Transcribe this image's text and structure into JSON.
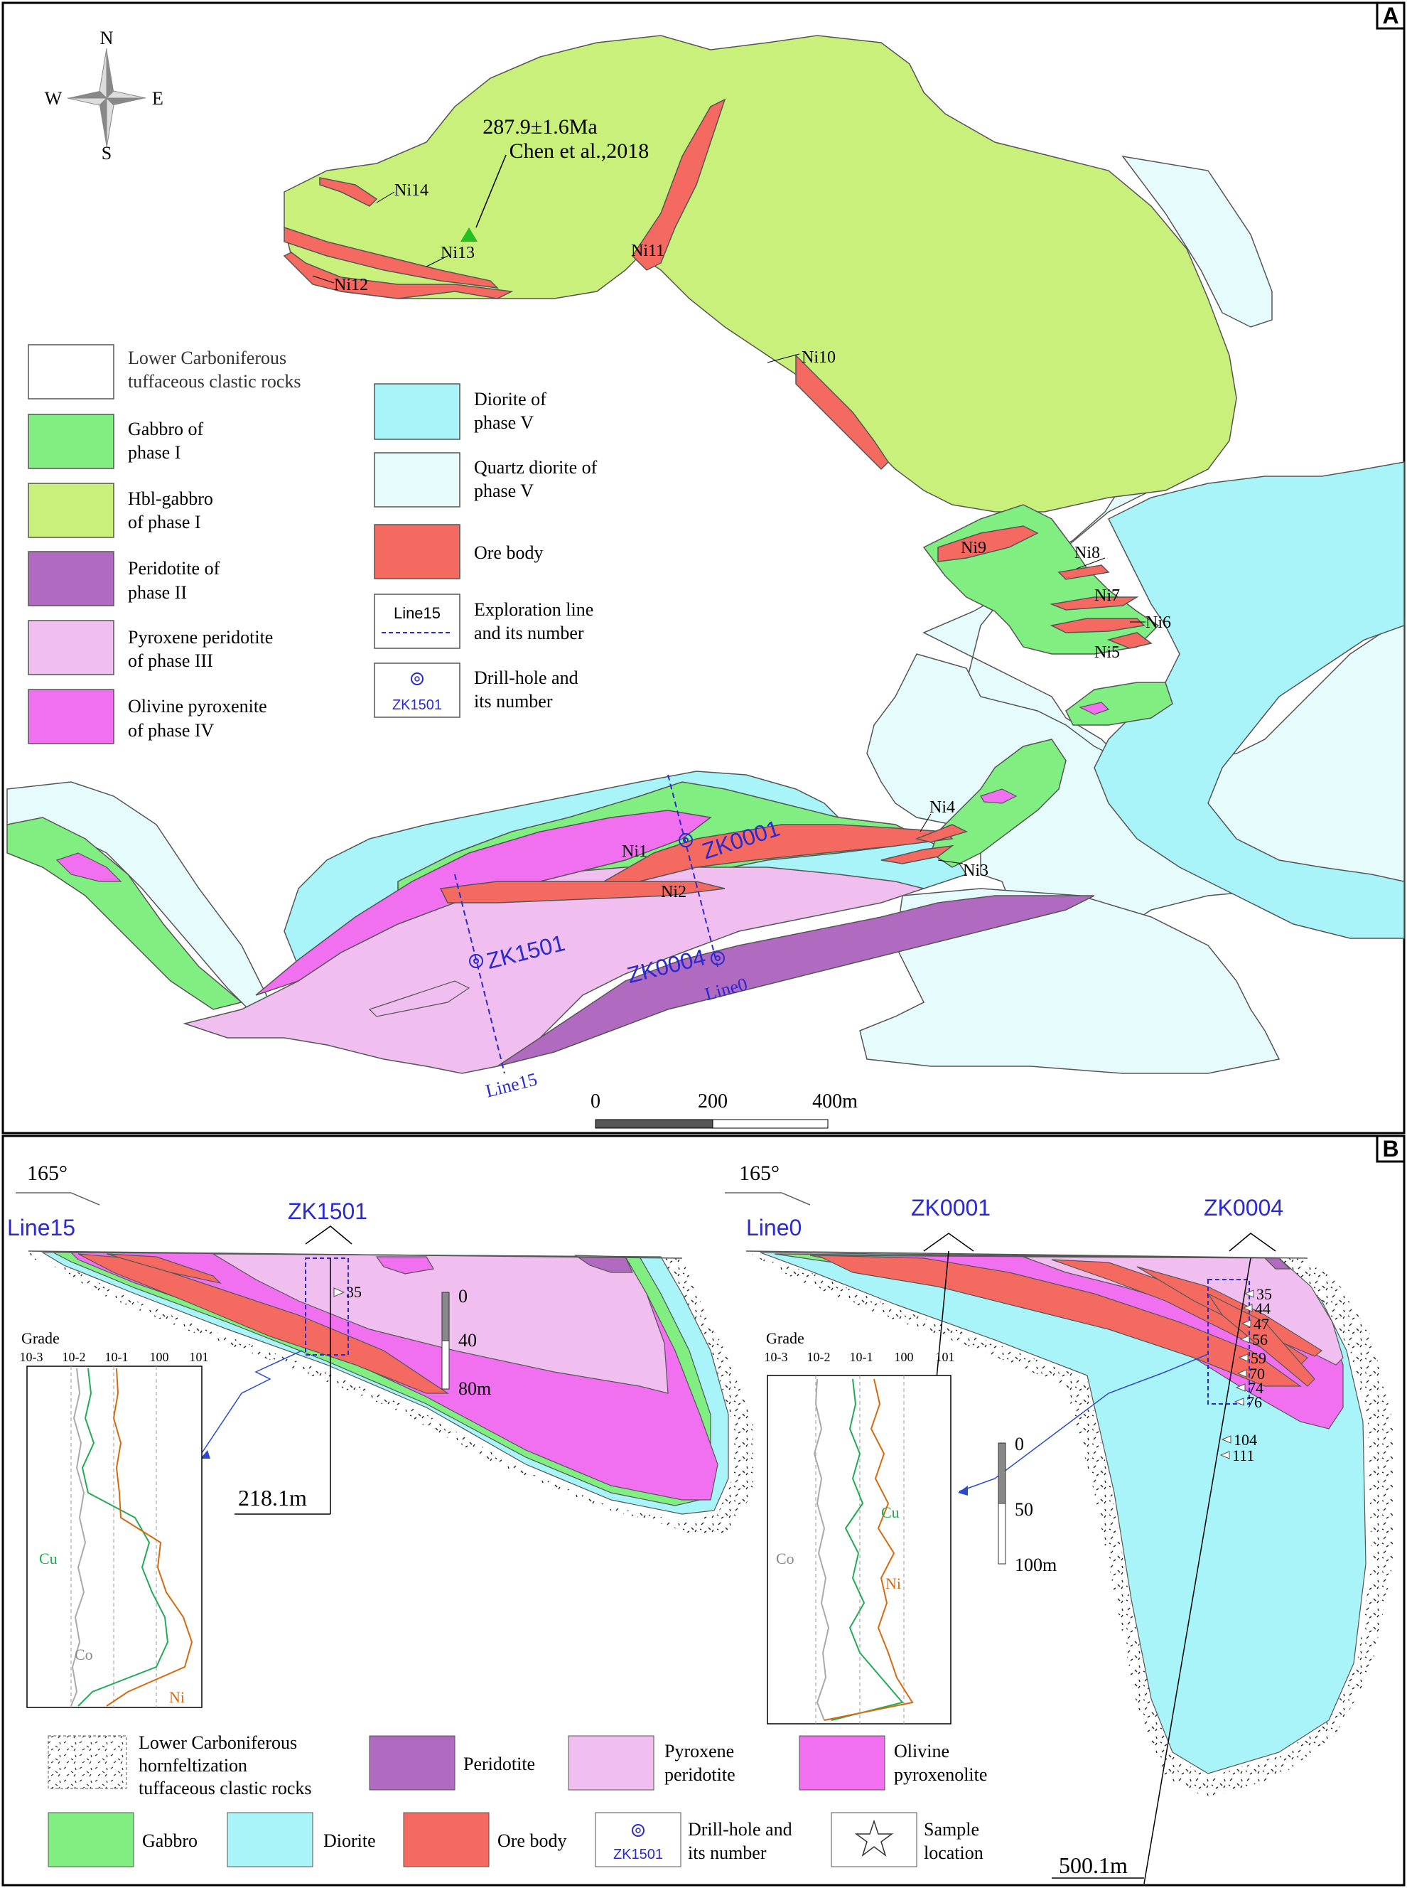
{
  "panel_a": {
    "label": "A",
    "compass": {
      "n": "N",
      "s": "S",
      "e": "E",
      "w": "W"
    },
    "date": {
      "age": "287.9±1.6Ma",
      "ref": "Chen  et al.,2018"
    },
    "ore_labels": [
      "Ni1",
      "Ni2",
      "Ni3",
      "Ni4",
      "Ni5",
      "Ni6",
      "Ni7",
      "Ni8",
      "Ni9",
      "Ni10",
      "Ni11",
      "Ni12",
      "Ni13",
      "Ni14"
    ],
    "drill_holes": [
      "ZK0001",
      "ZK1501",
      "ZK0004"
    ],
    "lines": [
      "Line0",
      "Line15"
    ],
    "scale": {
      "t0": "0",
      "t1": "200",
      "t2": "400m"
    },
    "legend_left": [
      {
        "l1": "Lower Carboniferous",
        "l2": "tuffaceous clastic rocks",
        "color": "#ffffff"
      },
      {
        "l1": "Gabbro of",
        "l2": " phase I",
        "color": "#80ee80"
      },
      {
        "l1": "Hbl-gabbro",
        "l2": "of phase I",
        "color": "#c8f07a"
      },
      {
        "l1": "Peridotite of",
        "l2": " phase II",
        "color": "#b06ac0"
      },
      {
        "l1": "Pyroxene peridotite",
        "l2": "of phase III",
        "color": "#f0bff0"
      },
      {
        "l1": "Olivine pyroxenite",
        "l2": "of phase IV",
        "color": "#f070f0"
      }
    ],
    "legend_right": [
      {
        "l1": "Diorite of",
        "l2": " phase V",
        "color": "#a8f4f8"
      },
      {
        "l1": "Quartz diorite of",
        "l2": " phase V",
        "color": "#e6fcfc"
      },
      {
        "l1": "Ore body",
        "l2": "",
        "color": "#f56a60"
      },
      {
        "l1": "Exploration line",
        "l2": "and its number",
        "sym": "Line15"
      },
      {
        "l1": "Drill-hole and",
        "l2": "its number",
        "sym": "ZK1501"
      }
    ]
  },
  "panel_b": {
    "label": "B",
    "strike": "165°",
    "line15": "Line15",
    "line0": "Line0",
    "zk1501": "ZK1501",
    "zk0001": "ZK0001",
    "zk0004": "ZK0004",
    "depth1": "218.1m",
    "depth2": "500.1m",
    "samples_left": [
      "35"
    ],
    "samples_right": [
      "35",
      "44",
      "47",
      "56",
      "59",
      "70",
      "74",
      "76",
      "104",
      "111"
    ],
    "grade": {
      "title": "Grade",
      "ticks": [
        "10-3",
        "10-2",
        "10-1",
        "100",
        "101"
      ],
      "cu": "Cu",
      "co": "Co",
      "ni": "Ni"
    },
    "scale_left": {
      "t0": "0",
      "t1": "40",
      "t2": "80m"
    },
    "scale_right": {
      "t0": "0",
      "t1": "50",
      "t2": "100m"
    },
    "legend": [
      {
        "l1": "Lower Carboniferous",
        "l2": "hornfeltization",
        "l3": "tuffaceous clastic rocks",
        "color": "hatch"
      },
      {
        "l1": "Peridotite",
        "color": "#b06ac0"
      },
      {
        "l1": "Pyroxene",
        "l2": "peridotite",
        "color": "#f0bff0"
      },
      {
        "l1": "Olivine",
        "l2": "pyroxenolite",
        "color": "#f070f0"
      },
      {
        "l1": "Gabbro",
        "color": "#80ee80"
      },
      {
        "l1": "Diorite",
        "color": "#a8f4f8"
      },
      {
        "l1": "Ore body",
        "color": "#f56a60"
      },
      {
        "l1": "Drill-hole and",
        "l2": "its number",
        "sym": "ZK1501"
      },
      {
        "l1": "Sample",
        "l2": "location"
      }
    ]
  }
}
